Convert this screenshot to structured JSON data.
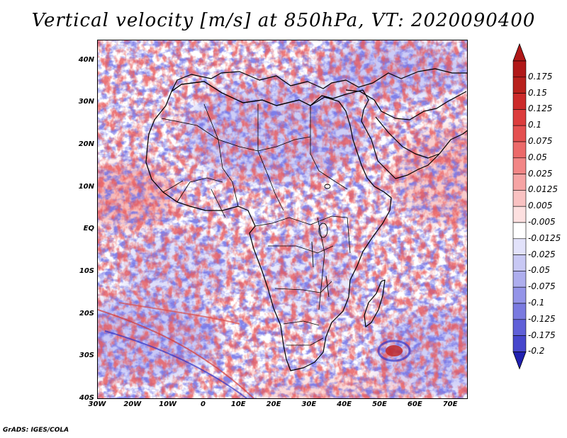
{
  "title": "Vertical velocity [m/s] at 850hPa, VT: 2020090400",
  "footer": "GrADS: IGES/COLA",
  "map": {
    "lon_range": [
      -30,
      75
    ],
    "lat_range": [
      -40,
      45
    ],
    "lat_ticks": [
      {
        "value": 40,
        "label": "40N"
      },
      {
        "value": 30,
        "label": "30N"
      },
      {
        "value": 20,
        "label": "20N"
      },
      {
        "value": 10,
        "label": "10N"
      },
      {
        "value": 0,
        "label": "EQ"
      },
      {
        "value": -10,
        "label": "10S"
      },
      {
        "value": -20,
        "label": "20S"
      },
      {
        "value": -30,
        "label": "30S"
      },
      {
        "value": -40,
        "label": "40S"
      }
    ],
    "lon_ticks": [
      {
        "value": -30,
        "label": "30W"
      },
      {
        "value": -20,
        "label": "20W"
      },
      {
        "value": -10,
        "label": "10W"
      },
      {
        "value": 0,
        "label": "0"
      },
      {
        "value": 10,
        "label": "10E"
      },
      {
        "value": 20,
        "label": "20E"
      },
      {
        "value": 30,
        "label": "30E"
      },
      {
        "value": 40,
        "label": "40E"
      },
      {
        "value": 50,
        "label": "50E"
      },
      {
        "value": 60,
        "label": "60E"
      },
      {
        "value": 70,
        "label": "70E"
      }
    ],
    "field_colors": {
      "positive": "#e05050",
      "negative": "#6a6ae8",
      "neutral": "#ffffff"
    }
  },
  "colorbar": {
    "levels": [
      {
        "label": "0.175",
        "color": "#b8201c"
      },
      {
        "label": "0.15",
        "color": "#cc2a2a"
      },
      {
        "label": "0.125",
        "color": "#dc3c3c"
      },
      {
        "label": "0.1",
        "color": "#e45050"
      },
      {
        "label": "0.075",
        "color": "#ec6a6a"
      },
      {
        "label": "0.05",
        "color": "#f28686"
      },
      {
        "label": "0.025",
        "color": "#f6a4a4"
      },
      {
        "label": "0.0125",
        "color": "#f9c2c2"
      },
      {
        "label": "0.005",
        "color": "#fde0e0"
      },
      {
        "label": "-0.005",
        "color": "#ffffff"
      },
      {
        "label": "-0.0125",
        "color": "#e2e2fa"
      },
      {
        "label": "-0.025",
        "color": "#c8c8f4"
      },
      {
        "label": "-0.05",
        "color": "#aeaeee"
      },
      {
        "label": "-0.075",
        "color": "#9494e8"
      },
      {
        "label": "-0.1",
        "color": "#7a7ae0"
      },
      {
        "label": "-0.125",
        "color": "#6060d8"
      },
      {
        "label": "-0.175",
        "color": "#4646cc"
      },
      {
        "label": "-0.2",
        "color": "#2c2cbc"
      }
    ],
    "bottom_color": "#2020b0",
    "top_color": "#b01818"
  }
}
